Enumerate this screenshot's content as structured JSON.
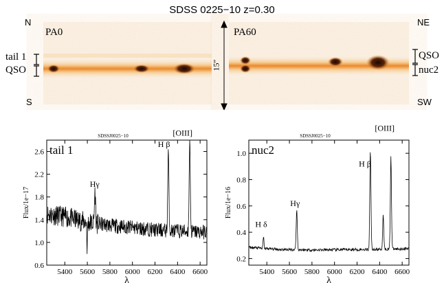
{
  "figure_title": "SDSS 0225−10 z=0.30",
  "top": {
    "left_panel": {
      "pa": "PA0",
      "north": "N",
      "south": "S",
      "tail_label": "tail 1",
      "qso_label": "QSO"
    },
    "right_panel": {
      "pa": "PA60",
      "ne": "NE",
      "sw": "SW",
      "qso_label": "QSO",
      "nuc_label": "nuc2"
    },
    "scale_label": "15″",
    "colors": {
      "background": "#fbf6ef",
      "trace": "#f2a64e",
      "core": "#c25a12",
      "knot": "#2a0f04"
    }
  },
  "chart_data": [
    {
      "type": "line",
      "small_title": "SDSSJ0025−10",
      "panel_label": "tail 1",
      "xlabel": "λ",
      "ylabel": "Flux/1e−17",
      "xlim": [
        5240,
        6660
      ],
      "ylim": [
        0.6,
        2.8
      ],
      "xticks": [
        5400,
        5600,
        5800,
        6000,
        6200,
        6400,
        6600
      ],
      "yticks": [
        0.6,
        1.0,
        1.4,
        1.8,
        2.2,
        2.6
      ],
      "ytick_labels": [
        "0.6",
        "1.0",
        "1.4",
        "1.8",
        "2.2",
        "2.6"
      ],
      "continuum": [
        [
          5240,
          1.5
        ],
        [
          5400,
          1.45
        ],
        [
          5600,
          1.35
        ],
        [
          5800,
          1.3
        ],
        [
          6000,
          1.26
        ],
        [
          6200,
          1.22
        ],
        [
          6400,
          1.2
        ],
        [
          6660,
          1.18
        ]
      ],
      "noise": 0.13,
      "lines": [
        {
          "x": 5668,
          "height": 0.55,
          "width": 5
        },
        {
          "x": 6318,
          "height": 1.4,
          "width": 5
        },
        {
          "x": 6508,
          "height": 1.62,
          "width": 5
        },
        {
          "x": 5598,
          "height": -0.62,
          "width": 2
        }
      ],
      "annotations": [
        {
          "text": "Hγ",
          "x": 5665,
          "y": 1.98
        },
        {
          "text": "H β",
          "x": 6280,
          "y": 2.68
        },
        {
          "text": "[OIII]",
          "x": 6445,
          "y": 2.88
        }
      ]
    },
    {
      "type": "line",
      "small_title": "SDSSJ0025−10",
      "panel_label": "nuc2",
      "xlabel": "λ",
      "ylabel": "Flux/1e−16",
      "xlim": [
        5240,
        6660
      ],
      "ylim": [
        0.15,
        1.1
      ],
      "xticks": [
        5400,
        5600,
        5800,
        6000,
        6200,
        6400,
        6600
      ],
      "yticks": [
        0.2,
        0.4,
        0.6,
        0.8,
        1.0
      ],
      "ytick_labels": [
        "0.2",
        "0.4",
        "0.6",
        "0.8",
        "1.0"
      ],
      "continuum": [
        [
          5240,
          0.285
        ],
        [
          5500,
          0.27
        ],
        [
          5800,
          0.265
        ],
        [
          6100,
          0.268
        ],
        [
          6400,
          0.27
        ],
        [
          6660,
          0.275
        ]
      ],
      "noise": 0.011,
      "lines": [
        {
          "x": 5370,
          "height": 0.085,
          "width": 4
        },
        {
          "x": 5665,
          "height": 0.3,
          "width": 5
        },
        {
          "x": 6318,
          "height": 0.76,
          "width": 5
        },
        {
          "x": 6432,
          "height": 0.26,
          "width": 5
        },
        {
          "x": 6500,
          "height": 0.71,
          "width": 5
        }
      ],
      "annotations": [
        {
          "text": "H δ",
          "x": 5350,
          "y": 0.44
        },
        {
          "text": "Hγ",
          "x": 5650,
          "y": 0.6
        },
        {
          "text": "H β",
          "x": 6270,
          "y": 0.9
        },
        {
          "text": "[OIII]",
          "x": 6445,
          "y": 1.17
        }
      ]
    }
  ]
}
